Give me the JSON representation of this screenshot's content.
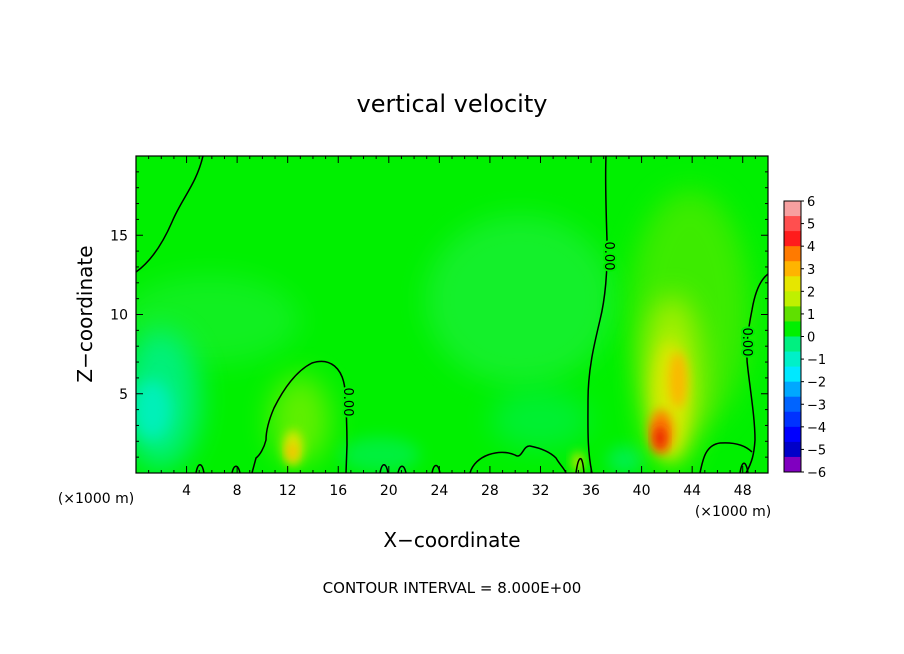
{
  "chart_data": {
    "type": "heatmap",
    "title": "vertical velocity",
    "xlabel": "X−coordinate",
    "ylabel": "Z−coordinate",
    "x_unit_left": "(×1000 m)",
    "x_unit_right": "(×1000 m)",
    "xlim": [
      0,
      50
    ],
    "ylim": [
      0,
      20
    ],
    "x_ticks": [
      4,
      8,
      12,
      16,
      20,
      24,
      28,
      32,
      36,
      40,
      44,
      48
    ],
    "y_ticks": [
      5,
      10,
      15
    ],
    "colorbar": {
      "labels": [
        "6",
        "5",
        "4",
        "3",
        "2",
        "1",
        "0",
        "−1",
        "−2",
        "−3",
        "−4",
        "−5",
        "−6"
      ],
      "colors": [
        "#f7a0a0",
        "#ff4f4f",
        "#ff1c1c",
        "#ff7a00",
        "#ffb400",
        "#e6e600",
        "#bff000",
        "#5fe000",
        "#00f000",
        "#00f080",
        "#00f0c8",
        "#00e8ff",
        "#00a8ff",
        "#0064ff",
        "#0032ff",
        "#0000ff",
        "#0000c8",
        "#8000c0"
      ]
    },
    "contour_labels": [
      "0.00",
      "0.00",
      "0.00"
    ],
    "features": [
      {
        "x": 42,
        "z": 2.5,
        "value": 4
      },
      {
        "x": 43,
        "z": 6,
        "value": 3
      },
      {
        "x": 12.5,
        "z": 1.5,
        "value": 3
      },
      {
        "x": 2,
        "z": 4,
        "value": -2
      }
    ],
    "footer": "CONTOUR INTERVAL = 8.000E+00"
  }
}
